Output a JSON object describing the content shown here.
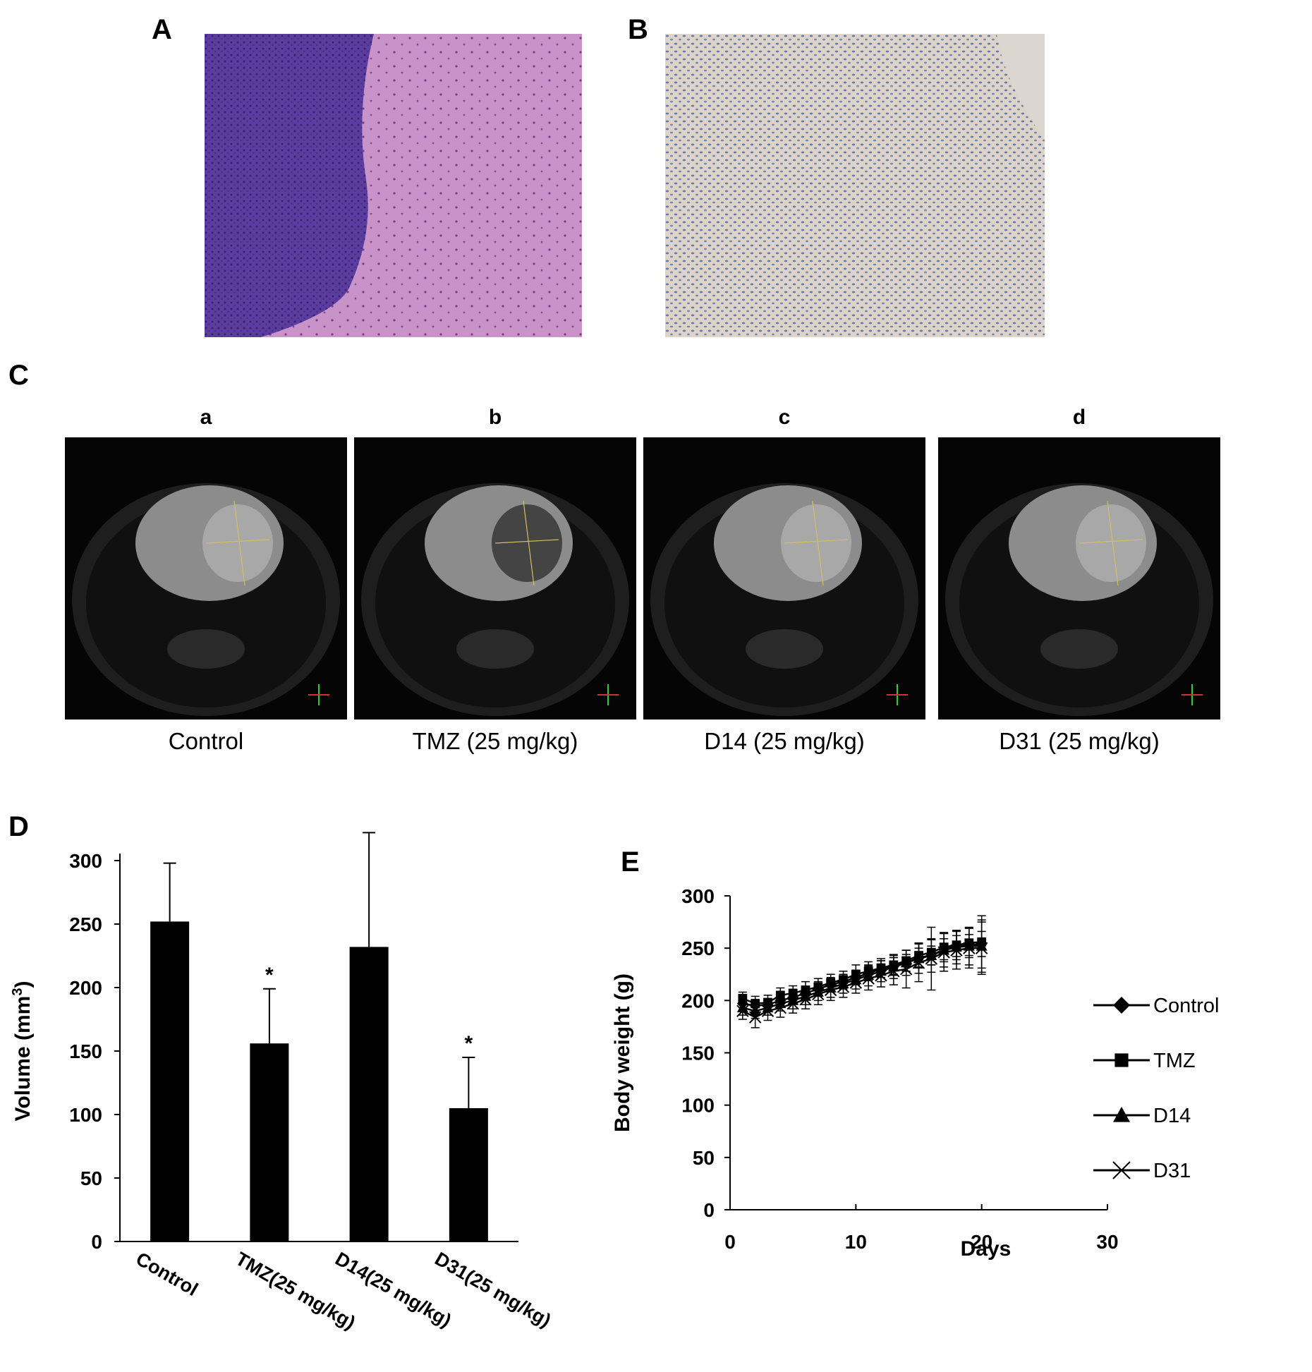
{
  "panels": {
    "A": "A",
    "B": "B",
    "C": "C",
    "D": "D",
    "E": "E"
  },
  "colors": {
    "he_dark": "#5a3d9e",
    "he_light": "#c893c8",
    "ihc_bg": "#ddd3c8",
    "ihc_dot": "#4d69a6",
    "bar": "#000000",
    "line": "#000000"
  },
  "mri": {
    "sublabels": [
      "a",
      "b",
      "c",
      "d"
    ],
    "captions": [
      "Control",
      "TMZ (25 mg/kg)",
      "D14 (25 mg/kg)",
      "D31 (25 mg/kg)"
    ]
  },
  "chart_data": [
    {
      "panel": "D",
      "type": "bar",
      "categories": [
        "Control",
        "TMZ(25 mg/kg)",
        "D14(25 mg/kg)",
        "D31(25 mg/kg)"
      ],
      "values": [
        252,
        156,
        232,
        105
      ],
      "errors": [
        46,
        43,
        90,
        40
      ],
      "significance": [
        "",
        "*",
        "",
        "*"
      ],
      "ylabel": "Volume (mm",
      "ylabel_sup": "3",
      "ylabel_close": ")",
      "ylim": [
        0,
        300
      ],
      "yticks": [
        0,
        50,
        100,
        150,
        200,
        250,
        300
      ]
    },
    {
      "panel": "E",
      "type": "line",
      "xlabel": "Days",
      "ylabel": "Body weight (g)",
      "xlim": [
        0,
        30
      ],
      "ylim": [
        0,
        300
      ],
      "xticks": [
        0,
        10,
        20,
        30
      ],
      "yticks": [
        0,
        50,
        100,
        150,
        200,
        250,
        300
      ],
      "x": [
        1,
        2,
        3,
        4,
        5,
        6,
        7,
        8,
        9,
        10,
        11,
        12,
        13,
        14,
        15,
        16,
        17,
        18,
        19,
        20
      ],
      "legend_position": "right",
      "series": [
        {
          "name": "Control",
          "marker": "diamond",
          "values": [
            197,
            195,
            196,
            200,
            203,
            207,
            211,
            215,
            218,
            222,
            226,
            230,
            233,
            236,
            241,
            243,
            249,
            252,
            253,
            254
          ],
          "errors": [
            6,
            6,
            6,
            6,
            6,
            6,
            7,
            7,
            7,
            7,
            7,
            8,
            8,
            8,
            9,
            9,
            10,
            10,
            10,
            12
          ]
        },
        {
          "name": "TMZ",
          "marker": "square",
          "values": [
            202,
            197,
            198,
            205,
            207,
            210,
            213,
            217,
            220,
            225,
            228,
            231,
            234,
            238,
            243,
            246,
            251,
            253,
            255,
            256
          ],
          "errors": [
            6,
            7,
            7,
            7,
            7,
            8,
            8,
            8,
            8,
            9,
            9,
            9,
            10,
            10,
            12,
            12,
            14,
            14,
            14,
            25
          ]
        },
        {
          "name": "D14",
          "marker": "triangle",
          "values": [
            193,
            190,
            193,
            197,
            200,
            204,
            208,
            212,
            216,
            220,
            224,
            228,
            232,
            236,
            240,
            243,
            248,
            251,
            252,
            252
          ],
          "errors": [
            7,
            7,
            7,
            7,
            8,
            8,
            8,
            9,
            9,
            9,
            10,
            10,
            11,
            12,
            14,
            16,
            16,
            16,
            18,
            25
          ]
        },
        {
          "name": "D31",
          "marker": "x",
          "values": [
            190,
            184,
            190,
            193,
            197,
            201,
            206,
            210,
            213,
            217,
            221,
            224,
            228,
            230,
            236,
            240,
            246,
            248,
            250,
            250
          ],
          "errors": [
            8,
            10,
            9,
            9,
            9,
            9,
            10,
            10,
            10,
            10,
            11,
            11,
            13,
            18,
            18,
            30,
            18,
            18,
            19,
            25
          ]
        }
      ]
    }
  ]
}
